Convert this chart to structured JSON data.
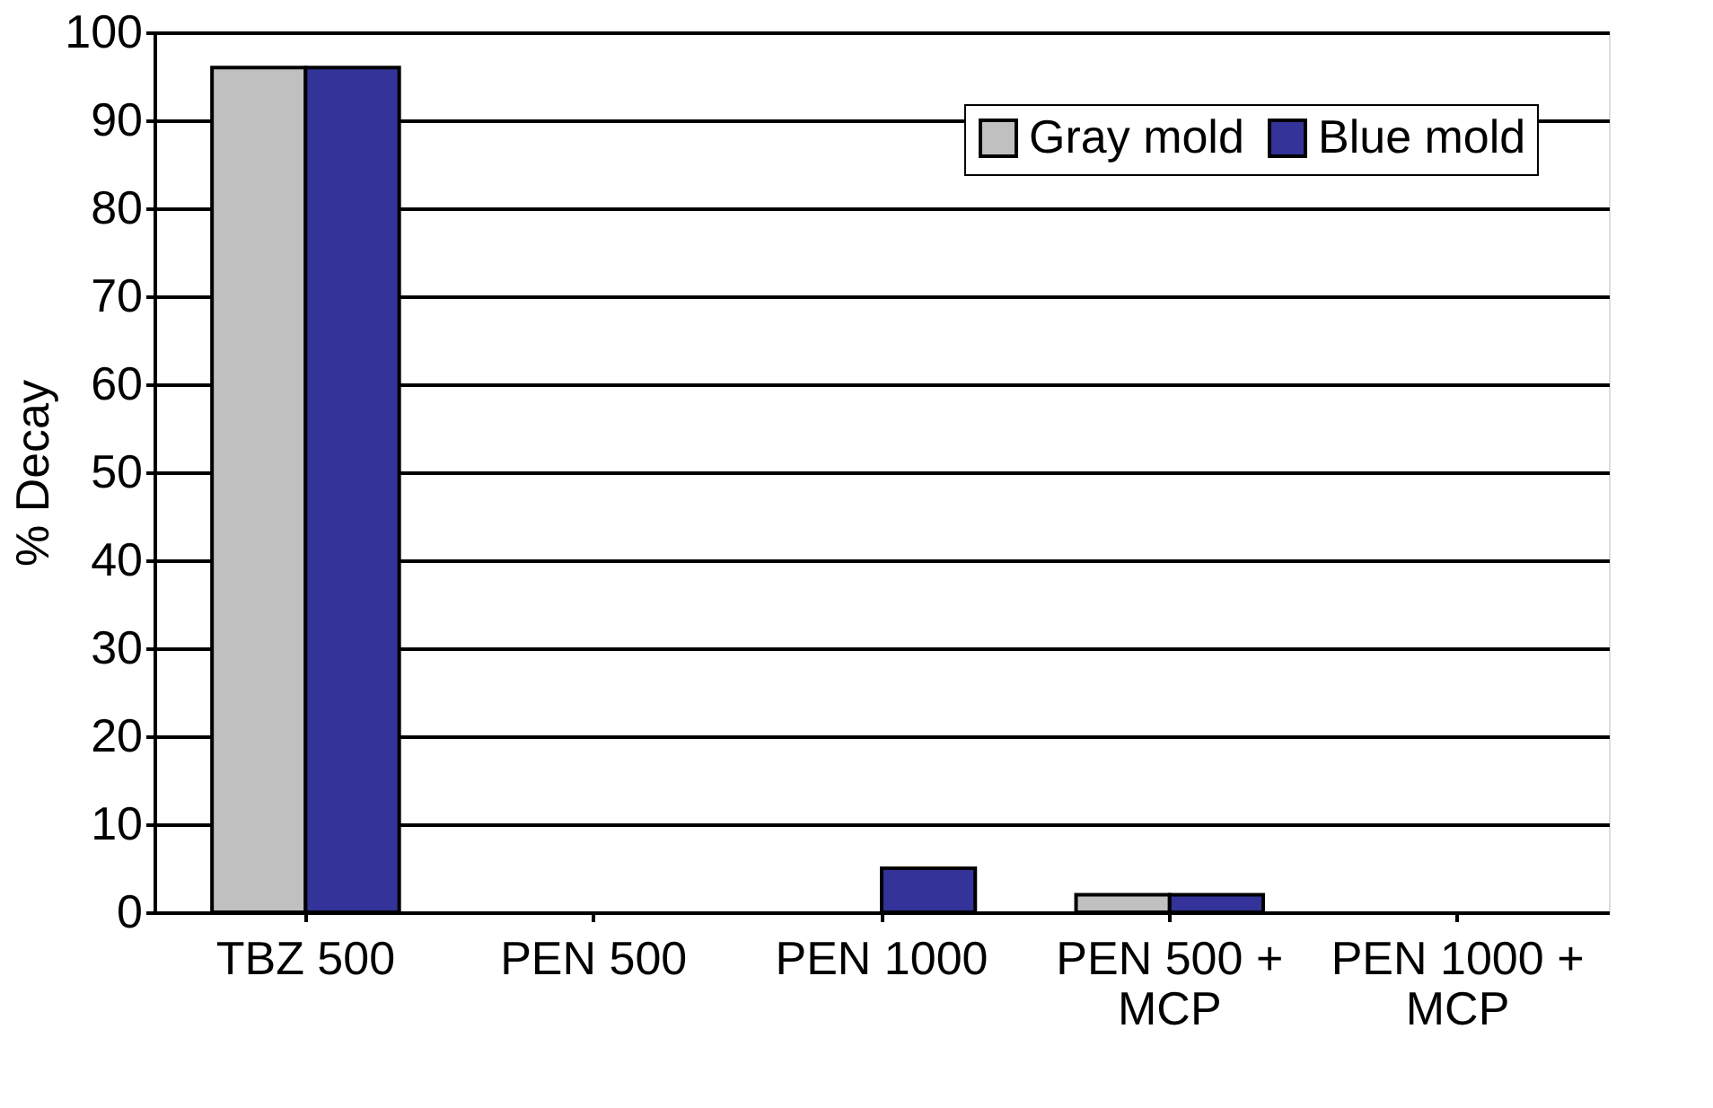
{
  "chart_data": {
    "type": "bar",
    "ylabel": "% Decay",
    "categories": [
      "TBZ 500",
      "PEN 500",
      "PEN 1000",
      "PEN 500 +\nMCP",
      "PEN 1000 +\nMCP"
    ],
    "series": [
      {
        "name": "Gray mold",
        "color": "#c0c0c0",
        "values": [
          96,
          0,
          0,
          2,
          0
        ]
      },
      {
        "name": "Blue mold",
        "color": "#333399",
        "values": [
          96,
          0,
          5,
          2,
          0
        ]
      }
    ],
    "ylim": [
      0,
      100
    ],
    "yticks": [
      0,
      10,
      20,
      30,
      40,
      50,
      60,
      70,
      80,
      90,
      100
    ],
    "grid": "y",
    "legend": "top right"
  }
}
